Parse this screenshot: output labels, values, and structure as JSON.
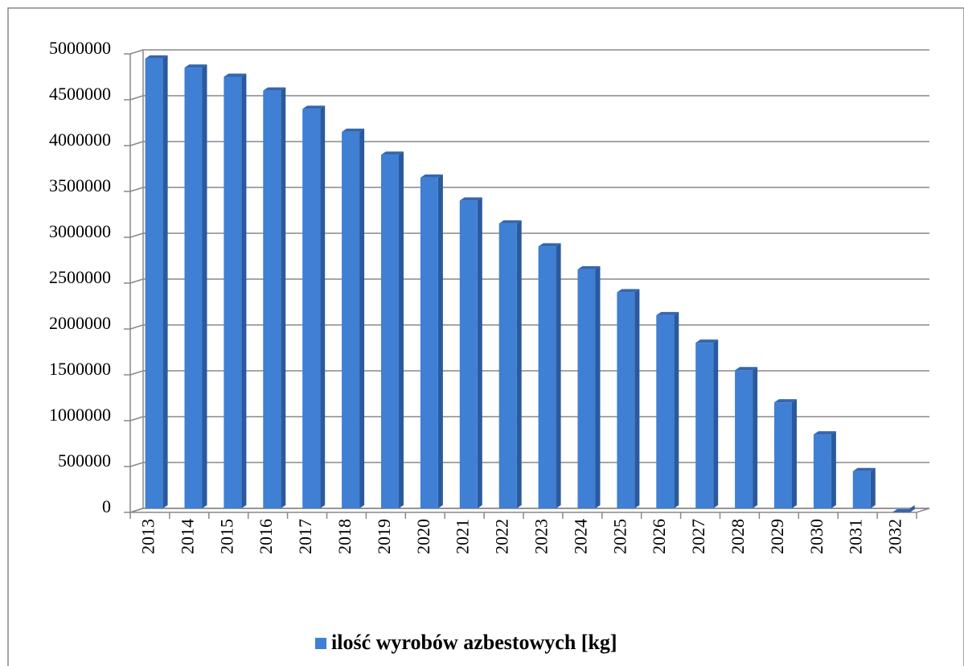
{
  "chart_data": {
    "type": "bar",
    "categories": [
      "2013",
      "2014",
      "2015",
      "2016",
      "2017",
      "2018",
      "2019",
      "2020",
      "2021",
      "2022",
      "2023",
      "2024",
      "2025",
      "2026",
      "2027",
      "2028",
      "2029",
      "2030",
      "2031",
      "2032"
    ],
    "series": [
      {
        "name": "ilość wyrobów azbestowych [kg]",
        "color": "#3f7fd4",
        "values": [
          4950000,
          4850000,
          4750000,
          4600000,
          4400000,
          4150000,
          3900000,
          3650000,
          3400000,
          3150000,
          2900000,
          2650000,
          2400000,
          2150000,
          1850000,
          1550000,
          1200000,
          850000,
          450000,
          0
        ]
      }
    ],
    "ylim": [
      0,
      5000000
    ],
    "yticks": [
      0,
      500000,
      1000000,
      1500000,
      2000000,
      2500000,
      3000000,
      3500000,
      4000000,
      4500000,
      5000000
    ],
    "grid": true,
    "legend": "bottom"
  }
}
